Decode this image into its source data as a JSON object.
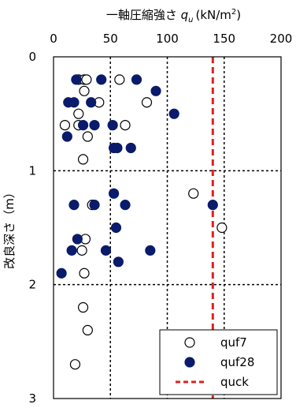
{
  "chart_data": {
    "type": "scatter",
    "title": "",
    "xlabel": {
      "main": "一軸圧縮強さ ",
      "sym": "q",
      "sub": "u",
      "unit_pre": "(kN/m",
      "sup": "2",
      "unit_post": ")"
    },
    "ylabel": "改良深さ（m）",
    "xlim": [
      0,
      200
    ],
    "ylim": [
      0,
      3
    ],
    "y_inverted": true,
    "x_axis_position": "top",
    "grid": true,
    "x_ticks": [
      0,
      50,
      100,
      150,
      200
    ],
    "x_tick_labels": [
      "0",
      "50",
      "100",
      "150",
      "200"
    ],
    "y_ticks": [
      0,
      1,
      2,
      3
    ],
    "y_tick_labels": [
      "0",
      "1",
      "2",
      "3"
    ],
    "legend_position": "bottom-right",
    "series": [
      {
        "name": "quf7",
        "marker": "open-circle",
        "color": "#000000",
        "points": [
          [
            22,
            0.2
          ],
          [
            27,
            0.2
          ],
          [
            29,
            0.2
          ],
          [
            58,
            0.2
          ],
          [
            27,
            0.3
          ],
          [
            40,
            0.4
          ],
          [
            82,
            0.4
          ],
          [
            22,
            0.5
          ],
          [
            10,
            0.6
          ],
          [
            22,
            0.6
          ],
          [
            63,
            0.6
          ],
          [
            30,
            0.7
          ],
          [
            26,
            0.9
          ],
          [
            123,
            1.2
          ],
          [
            34,
            1.3
          ],
          [
            148,
            1.5
          ],
          [
            28,
            1.6
          ],
          [
            25,
            1.7
          ],
          [
            27,
            1.9
          ],
          [
            26,
            2.2
          ],
          [
            30,
            2.4
          ],
          [
            19,
            2.7
          ]
        ]
      },
      {
        "name": "quf28",
        "marker": "filled-circle",
        "color": "#0a1b6b",
        "points": [
          [
            20,
            0.2
          ],
          [
            42,
            0.2
          ],
          [
            73,
            0.2
          ],
          [
            90,
            0.3
          ],
          [
            13,
            0.4
          ],
          [
            18,
            0.4
          ],
          [
            33,
            0.4
          ],
          [
            106,
            0.5
          ],
          [
            26,
            0.6
          ],
          [
            36,
            0.6
          ],
          [
            52,
            0.6
          ],
          [
            12,
            0.7
          ],
          [
            53,
            0.8
          ],
          [
            56,
            0.8
          ],
          [
            68,
            0.8
          ],
          [
            53,
            1.2
          ],
          [
            18,
            1.3
          ],
          [
            36,
            1.3
          ],
          [
            63,
            1.3
          ],
          [
            140,
            1.3
          ],
          [
            55,
            1.5
          ],
          [
            21,
            1.6
          ],
          [
            16,
            1.7
          ],
          [
            46,
            1.7
          ],
          [
            85,
            1.7
          ],
          [
            57,
            1.8
          ],
          [
            7,
            1.9
          ]
        ]
      },
      {
        "name": "quck",
        "type": "vline",
        "style": "dashed",
        "color": "#e02020",
        "x": 140
      }
    ]
  }
}
